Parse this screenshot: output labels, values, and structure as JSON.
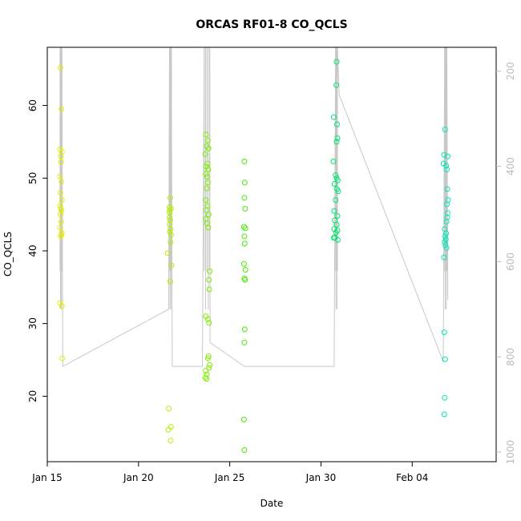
{
  "chart_data": {
    "type": "scatter",
    "title": "ORCAS RF01-8 CO_QCLS",
    "xlabel": "Date",
    "ylabel": "CO_QCLS",
    "x_range_days": [
      15.0,
      39.6
    ],
    "ylim": [
      11.0,
      68.0
    ],
    "y2lim": [
      1020,
      150
    ],
    "x_ticks": [
      {
        "value": 15.0,
        "label": "Jan 15"
      },
      {
        "value": 20.0,
        "label": "Jan 20"
      },
      {
        "value": 25.0,
        "label": "Jan 25"
      },
      {
        "value": 30.0,
        "label": "Jan 30"
      },
      {
        "value": 35.0,
        "label": "Feb 04"
      }
    ],
    "y_ticks": [
      20,
      30,
      40,
      50,
      60
    ],
    "y2_ticks": [
      200,
      400,
      600,
      800,
      1000
    ],
    "grid": false,
    "series": [
      {
        "color": "#e6f000",
        "points": [
          [
            15.72,
            65.2
          ],
          [
            15.78,
            59.5
          ],
          [
            15.7,
            54.0
          ],
          [
            15.8,
            53.6
          ],
          [
            15.74,
            53.0
          ],
          [
            15.76,
            52.2
          ],
          [
            15.7,
            50.2
          ],
          [
            15.78,
            49.5
          ],
          [
            15.72,
            48.0
          ],
          [
            15.8,
            47.0
          ],
          [
            15.7,
            46.2
          ],
          [
            15.74,
            45.8
          ],
          [
            15.78,
            45.5
          ],
          [
            15.72,
            45.0
          ],
          [
            15.76,
            44.0
          ],
          [
            15.7,
            43.2
          ],
          [
            15.8,
            42.5
          ],
          [
            15.74,
            42.0
          ],
          [
            15.78,
            42.2
          ],
          [
            15.7,
            32.8
          ],
          [
            15.8,
            32.4
          ],
          [
            15.82,
            25.2
          ]
        ]
      },
      {
        "color": "#b6f000",
        "points": [
          [
            21.74,
            47.3
          ],
          [
            21.7,
            46.0
          ],
          [
            21.72,
            45.6
          ],
          [
            21.78,
            45.8
          ],
          [
            21.68,
            45.3
          ],
          [
            21.74,
            44.2
          ],
          [
            21.7,
            43.6
          ],
          [
            21.76,
            43.0
          ],
          [
            21.72,
            42.6
          ],
          [
            21.78,
            42.2
          ],
          [
            21.7,
            44.6
          ],
          [
            21.76,
            41.2
          ],
          [
            21.6,
            39.7
          ],
          [
            21.8,
            38.0
          ],
          [
            21.74,
            35.8
          ],
          [
            21.66,
            18.3
          ],
          [
            21.64,
            15.4
          ],
          [
            21.78,
            15.8
          ],
          [
            21.76,
            13.9
          ]
        ]
      },
      {
        "color": "#7fee00",
        "points": [
          [
            23.7,
            56.0
          ],
          [
            23.8,
            55.2
          ],
          [
            23.74,
            54.4
          ],
          [
            23.84,
            54.1
          ],
          [
            23.66,
            53.3
          ],
          [
            23.78,
            52.0
          ],
          [
            23.72,
            51.6
          ],
          [
            23.82,
            51.2
          ],
          [
            23.7,
            50.6
          ],
          [
            23.76,
            50.2
          ],
          [
            23.8,
            49.4
          ],
          [
            23.74,
            48.6
          ],
          [
            23.68,
            47.0
          ],
          [
            23.78,
            46.2
          ],
          [
            23.72,
            45.6
          ],
          [
            23.84,
            45.0
          ],
          [
            23.7,
            44.4
          ],
          [
            23.76,
            43.8
          ],
          [
            23.82,
            43.2
          ],
          [
            23.9,
            37.2
          ],
          [
            23.86,
            36.0
          ],
          [
            23.88,
            34.7
          ],
          [
            23.7,
            31.0
          ],
          [
            23.8,
            30.6
          ],
          [
            23.86,
            30.1
          ],
          [
            23.84,
            25.5
          ],
          [
            23.8,
            25.2
          ],
          [
            23.9,
            24.3
          ],
          [
            23.86,
            23.9
          ],
          [
            23.68,
            23.5
          ],
          [
            23.74,
            23.0
          ],
          [
            23.72,
            22.4
          ],
          [
            23.66,
            22.6
          ]
        ]
      },
      {
        "color": "#44ea00",
        "points": [
          [
            25.8,
            52.3
          ],
          [
            25.82,
            49.4
          ],
          [
            25.8,
            47.3
          ],
          [
            25.84,
            45.8
          ],
          [
            25.78,
            43.3
          ],
          [
            25.86,
            43.1
          ],
          [
            25.8,
            42.0
          ],
          [
            25.82,
            41.0
          ],
          [
            25.78,
            38.2
          ],
          [
            25.86,
            37.4
          ],
          [
            25.8,
            36.2
          ],
          [
            25.84,
            36.0
          ],
          [
            25.82,
            29.2
          ],
          [
            25.8,
            27.4
          ],
          [
            25.78,
            16.8
          ],
          [
            25.8,
            12.6
          ]
        ]
      },
      {
        "color": "#00e66e",
        "points": [
          [
            30.7,
            58.4
          ],
          [
            30.86,
            66.0
          ],
          [
            30.84,
            62.8
          ],
          [
            30.88,
            57.4
          ],
          [
            30.9,
            55.5
          ],
          [
            30.86,
            55.0
          ],
          [
            30.68,
            52.3
          ],
          [
            30.8,
            50.4
          ],
          [
            30.86,
            50.0
          ],
          [
            30.92,
            49.7
          ],
          [
            30.74,
            49.2
          ],
          [
            30.88,
            48.5
          ],
          [
            30.94,
            48.2
          ],
          [
            30.8,
            47.0
          ],
          [
            30.72,
            45.5
          ],
          [
            30.9,
            44.8
          ],
          [
            30.76,
            44.2
          ],
          [
            30.86,
            43.6
          ],
          [
            30.72,
            43.0
          ],
          [
            30.82,
            42.5
          ],
          [
            30.9,
            42.8
          ],
          [
            30.76,
            41.8
          ],
          [
            30.92,
            41.5
          ],
          [
            30.7,
            41.8
          ]
        ]
      },
      {
        "color": "#00e6b8",
        "points": [
          [
            36.8,
            56.7
          ],
          [
            36.74,
            53.2
          ],
          [
            36.94,
            53.0
          ],
          [
            36.72,
            52.0
          ],
          [
            36.86,
            51.7
          ],
          [
            36.9,
            51.2
          ],
          [
            36.92,
            48.5
          ],
          [
            36.96,
            47.0
          ],
          [
            36.9,
            46.4
          ],
          [
            36.94,
            45.2
          ],
          [
            36.92,
            44.6
          ],
          [
            36.88,
            44.0
          ],
          [
            36.78,
            43.0
          ],
          [
            36.86,
            42.4
          ],
          [
            36.8,
            42.0
          ],
          [
            36.84,
            41.6
          ],
          [
            36.78,
            41.2
          ],
          [
            36.82,
            40.8
          ],
          [
            36.88,
            40.4
          ],
          [
            36.74,
            39.1
          ],
          [
            36.76,
            28.8
          ],
          [
            36.8,
            25.1
          ],
          [
            36.78,
            19.8
          ],
          [
            36.76,
            17.5
          ]
        ]
      }
    ],
    "altitude_trace": {
      "color": "#c8c8c8",
      "points": [
        [
          15.7,
          150
        ],
        [
          15.8,
          150
        ],
        [
          15.85,
          820
        ],
        [
          21.65,
          700
        ],
        [
          21.7,
          150
        ],
        [
          21.8,
          150
        ],
        [
          21.85,
          820
        ],
        [
          23.5,
          820
        ],
        [
          23.6,
          150
        ],
        [
          23.9,
          150
        ],
        [
          23.92,
          770
        ],
        [
          25.8,
          820
        ],
        [
          25.86,
          820
        ],
        [
          30.72,
          820
        ],
        [
          30.8,
          150
        ],
        [
          30.9,
          150
        ],
        [
          31.0,
          250
        ],
        [
          36.7,
          810
        ],
        [
          36.78,
          150
        ],
        [
          36.9,
          150
        ],
        [
          36.95,
          680
        ]
      ]
    }
  }
}
